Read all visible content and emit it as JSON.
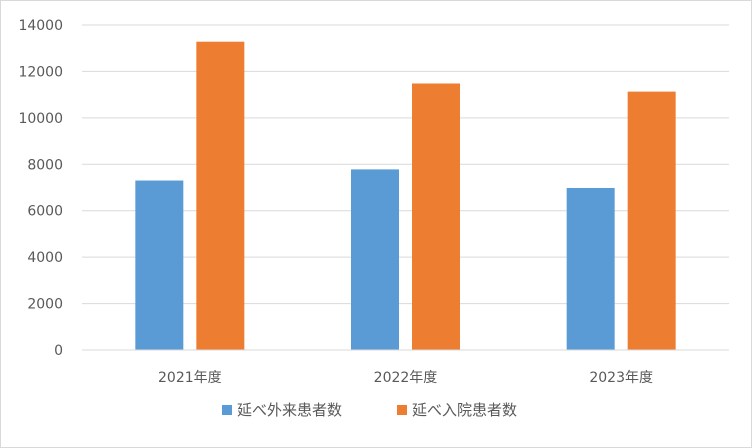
{
  "chart_data": {
    "type": "bar",
    "title": "",
    "xlabel": "",
    "ylabel": "",
    "categories": [
      "2021年度",
      "2022年度",
      "2023年度"
    ],
    "series": [
      {
        "name": "延べ外来患者数",
        "color": "#5b9bd5",
        "values": [
          7300,
          7780,
          6980
        ]
      },
      {
        "name": "延べ入院患者数",
        "color": "#ed7d31",
        "values": [
          13280,
          11480,
          11130
        ]
      }
    ],
    "ylim": [
      0,
      14000
    ],
    "yticks": [
      0,
      2000,
      4000,
      6000,
      8000,
      10000,
      12000,
      14000
    ],
    "grid": true,
    "legend_position": "bottom",
    "gridline_color": "#d9d9d9",
    "axis_text_color": "#595959"
  }
}
